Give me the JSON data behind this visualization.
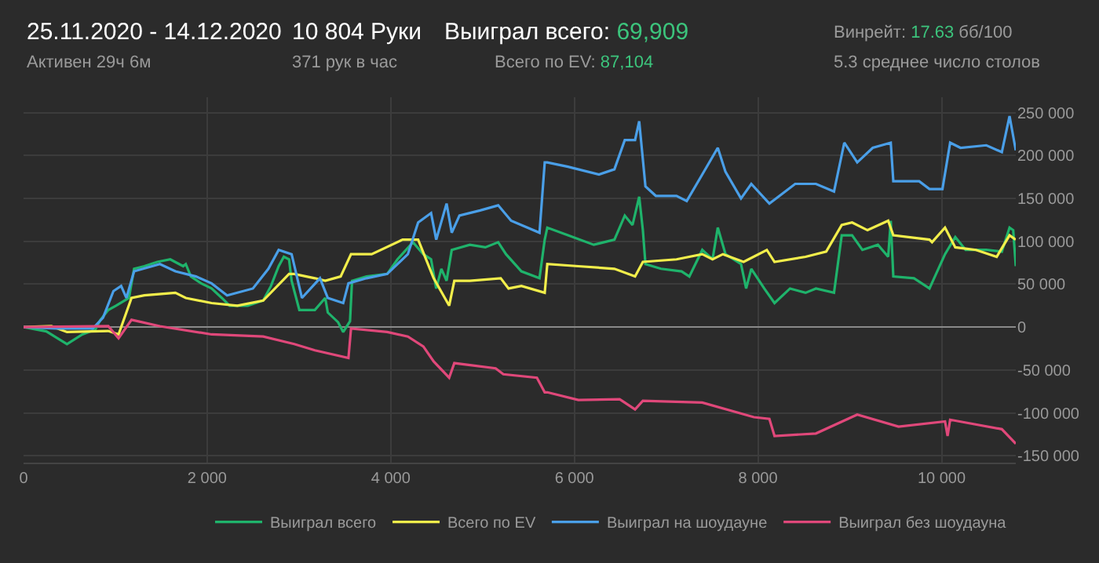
{
  "chart_data": {
    "type": "line",
    "annotations": [
      "25.11.2020 - 14.12.2020",
      "Активен 29ч 6м",
      "10 804 Руки",
      "371 рук в час",
      "Выиграл всего: 69,909",
      "Всего по EV: 87,104",
      "Винрейт: 17.63 бб/100",
      "5.3 среднее число столов"
    ],
    "series": [
      {
        "name": "Выиграл всего",
        "color": "#1fb36b",
        "x": [
          0,
          248,
          473,
          641,
          782,
          838,
          923,
          1007,
          1148,
          1204,
          1316,
          1457,
          1598,
          1739,
          1767,
          1823,
          1935,
          2048,
          2160,
          2245,
          2442,
          2610,
          2695,
          2779,
          2835,
          2892,
          2920,
          3004,
          3173,
          3286,
          3314,
          3426,
          3482,
          3556,
          3578,
          3736,
          3961,
          4073,
          4242,
          4355,
          4439,
          4495,
          4551,
          4608,
          4664,
          4861,
          5030,
          5170,
          5255,
          5423,
          5620,
          5677,
          5705,
          5930,
          6211,
          6436,
          6549,
          6633,
          6706,
          6746,
          6774,
          6943,
          7168,
          7252,
          7393,
          7505,
          7562,
          7646,
          7815,
          7871,
          7927,
          8068,
          8180,
          8349,
          8518,
          8631,
          8828,
          8912,
          9025,
          9137,
          9306,
          9418,
          9446,
          9474,
          9699,
          9868,
          10037,
          10149,
          10262,
          10487,
          10656,
          10740,
          10780,
          10808
        ],
        "values": [
          0,
          -5000,
          -19800,
          -8500,
          -2800,
          8500,
          20000,
          25000,
          34000,
          68000,
          71000,
          76000,
          79000,
          71000,
          73500,
          59000,
          51000,
          45000,
          34000,
          25000,
          25000,
          31000,
          48000,
          71000,
          82000,
          79000,
          54000,
          20000,
          20000,
          34000,
          17000,
          5700,
          -5700,
          6800,
          54000,
          59000,
          62000,
          79000,
          99000,
          85000,
          79000,
          45000,
          68000,
          54000,
          90000,
          96000,
          93000,
          99000,
          85000,
          65000,
          57000,
          102000,
          116000,
          107000,
          96000,
          102000,
          130000,
          119000,
          152000,
          113000,
          73500,
          68000,
          65000,
          59000,
          90000,
          79000,
          116000,
          85000,
          73500,
          45000,
          68000,
          45000,
          28000,
          45000,
          40000,
          45000,
          40000,
          107000,
          107000,
          90000,
          96000,
          82000,
          124000,
          59000,
          57000,
          45000,
          85000,
          105000,
          90000,
          90000,
          88000,
          116000,
          113000,
          71000
        ]
      },
      {
        "name": "Всего по EV",
        "color": "#f2ee4b",
        "x": [
          0,
          304,
          473,
          923,
          1035,
          1176,
          1316,
          1654,
          1767,
          2048,
          2329,
          2610,
          2892,
          2948,
          3173,
          3286,
          3454,
          3567,
          3792,
          4129,
          4298,
          4467,
          4636,
          4692,
          4861,
          5198,
          5283,
          5423,
          5677,
          5705,
          6043,
          6436,
          6661,
          6746,
          7112,
          7393,
          7505,
          7618,
          7843,
          8096,
          8180,
          8518,
          8743,
          8912,
          9025,
          9193,
          9418,
          9474,
          9868,
          9896,
          10037,
          10149,
          10375,
          10600,
          10740,
          10808
        ],
        "values": [
          0,
          1100,
          -5700,
          -4500,
          -8500,
          34000,
          37000,
          40000,
          34000,
          28000,
          25000,
          31000,
          62000,
          62000,
          57000,
          54000,
          59000,
          85000,
          85000,
          102000,
          102000,
          57000,
          25000,
          54000,
          54000,
          57000,
          45000,
          48000,
          40000,
          73500,
          71000,
          68000,
          59000,
          76000,
          79000,
          85000,
          79000,
          85000,
          76000,
          90000,
          76000,
          82000,
          88000,
          119000,
          122000,
          113000,
          124000,
          107000,
          102000,
          99000,
          116000,
          93000,
          90000,
          82000,
          107000,
          102000
        ]
      },
      {
        "name": "Выиграл на шоудауне",
        "color": "#4a9fe8",
        "x": [
          0,
          360,
          754,
          866,
          979,
          1063,
          1120,
          1204,
          1485,
          1654,
          1879,
          2048,
          2217,
          2498,
          2667,
          2779,
          2920,
          3032,
          3229,
          3314,
          3482,
          3539,
          3736,
          3961,
          4186,
          4298,
          4439,
          4495,
          4608,
          4664,
          4748,
          4973,
          5170,
          5311,
          5620,
          5677,
          5705,
          5930,
          6268,
          6436,
          6549,
          6661,
          6706,
          6774,
          6887,
          7112,
          7224,
          7393,
          7562,
          7646,
          7815,
          7927,
          8124,
          8405,
          8631,
          8828,
          8940,
          9081,
          9250,
          9446,
          9474,
          9756,
          9868,
          10009,
          10093,
          10206,
          10487,
          10656,
          10740,
          10808
        ],
        "values": [
          0,
          -1700,
          -1700,
          11000,
          42000,
          48000,
          34000,
          65000,
          73500,
          65000,
          59000,
          51000,
          37000,
          45000,
          68000,
          90000,
          85000,
          34000,
          57000,
          34000,
          28000,
          51000,
          57000,
          62000,
          85000,
          122000,
          133000,
          102000,
          144000,
          110000,
          130000,
          136000,
          142000,
          124000,
          110000,
          192000,
          192000,
          187000,
          178000,
          184000,
          218000,
          218000,
          240000,
          164000,
          153000,
          153000,
          147000,
          178000,
          209000,
          181000,
          150000,
          167000,
          144000,
          167000,
          167000,
          158000,
          215000,
          192000,
          209000,
          215000,
          170000,
          170000,
          161000,
          161000,
          215000,
          209000,
          212000,
          204000,
          246000,
          206000
        ]
      },
      {
        "name": "Выиграл без шоудауна",
        "color": "#e0487a",
        "x": [
          0,
          923,
          1035,
          1176,
          1485,
          2048,
          2610,
          2948,
          3173,
          3539,
          3567,
          3961,
          4186,
          4355,
          4467,
          4636,
          4692,
          5142,
          5226,
          5592,
          5677,
          5705,
          6043,
          6493,
          6661,
          6746,
          7393,
          7955,
          8124,
          8180,
          8631,
          9081,
          9531,
          10037,
          10065,
          10093,
          10656,
          10808
        ],
        "values": [
          0,
          1100,
          -13000,
          8500,
          1100,
          -8500,
          -11000,
          -19800,
          -27000,
          -36000,
          -1700,
          -5700,
          -11000,
          -22600,
          -40000,
          -59000,
          -42000,
          -48000,
          -55000,
          -59000,
          -76000,
          -76000,
          -85000,
          -84000,
          -96000,
          -86000,
          -88000,
          -105000,
          -107000,
          -127000,
          -124000,
          -102000,
          -116000,
          -110000,
          -127000,
          -108000,
          -119000,
          -136000
        ]
      }
    ],
    "xlim": [
      0,
      10808
    ],
    "xticks": [
      {
        "value": 0,
        "label": "0"
      },
      {
        "value": 2000,
        "label": "2 000"
      },
      {
        "value": 4000,
        "label": "4 000"
      },
      {
        "value": 6000,
        "label": "6 000"
      },
      {
        "value": 8000,
        "label": "8 000"
      },
      {
        "value": 10000,
        "label": "10 000"
      }
    ],
    "ylim": [
      -158000,
      268000
    ],
    "yticks": [
      {
        "value": -150000,
        "label": "-150 000"
      },
      {
        "value": -100000,
        "label": "-100 000"
      },
      {
        "value": -50000,
        "label": "-50 000"
      },
      0,
      {
        "value": 50000,
        "label": "50 000"
      },
      {
        "value": 100000,
        "label": "100 000"
      },
      {
        "value": 150000,
        "label": "150 000"
      },
      {
        "value": 200000,
        "label": "200 000"
      },
      {
        "value": 250000,
        "label": "250 000"
      }
    ],
    "grid": true,
    "legend": "bottom right",
    "marker": "none",
    "line_style": "solid"
  }
}
